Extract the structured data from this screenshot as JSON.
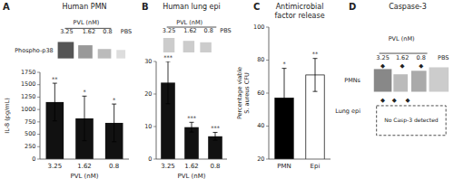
{
  "chart_data": [
    {
      "type": "bar",
      "title": "Human PMN",
      "categories": [
        "3.25",
        "1.62",
        "0.8"
      ],
      "values": [
        1150,
        820,
        730
      ],
      "errors": [
        380,
        450,
        380
      ],
      "color": "#111111",
      "xlabel": "PVL (nM)",
      "ylabel": "IL-8 (pg/mL)",
      "ylim": [
        0,
        1750
      ],
      "yticks": [
        0,
        250,
        500,
        750,
        1000,
        1250,
        1500,
        1750
      ],
      "annotations": [
        "A",
        "**",
        "*",
        "*",
        "PVL (nM)",
        "3.25",
        "1.62",
        "0.8",
        "PBS",
        "Phospho-p38"
      ]
    },
    {
      "type": "bar",
      "title": "Human lung epi",
      "categories": [
        "3.25",
        "1.62",
        "0.8"
      ],
      "values": [
        23.5,
        9.8,
        7.0
      ],
      "errors": [
        6.5,
        1.5,
        1.2
      ],
      "color": "#111111",
      "xlabel": "PVL (nM)",
      "ylim": [
        0,
        30
      ],
      "yticks": [
        0,
        10,
        20,
        30
      ],
      "annotations": [
        "B",
        "***",
        "***",
        "***",
        "PVL (nM)",
        "3.25",
        "1.62",
        "0.8",
        "PBS"
      ]
    },
    {
      "type": "bar",
      "title": "Antimicrobial\nfactor release",
      "categories": [
        "PMN",
        "Epi"
      ],
      "values": [
        57,
        71
      ],
      "errors": [
        18,
        10
      ],
      "colors": [
        "black",
        "white"
      ],
      "ylabel": "Percentage viable\nS. aureus CFU",
      "ylim": [
        20,
        100
      ],
      "yticks": [
        20,
        40,
        60,
        80,
        100
      ],
      "annotations": [
        "C",
        "*",
        "**"
      ]
    },
    {
      "type": "blot",
      "title": "Caspase-3",
      "annotations": [
        "D",
        "PVL (nM)",
        "3.25",
        "1.62",
        "0.8",
        "PBS",
        "◆",
        "PMNs",
        "Lung epi",
        "No Casp-3 detected"
      ]
    }
  ]
}
